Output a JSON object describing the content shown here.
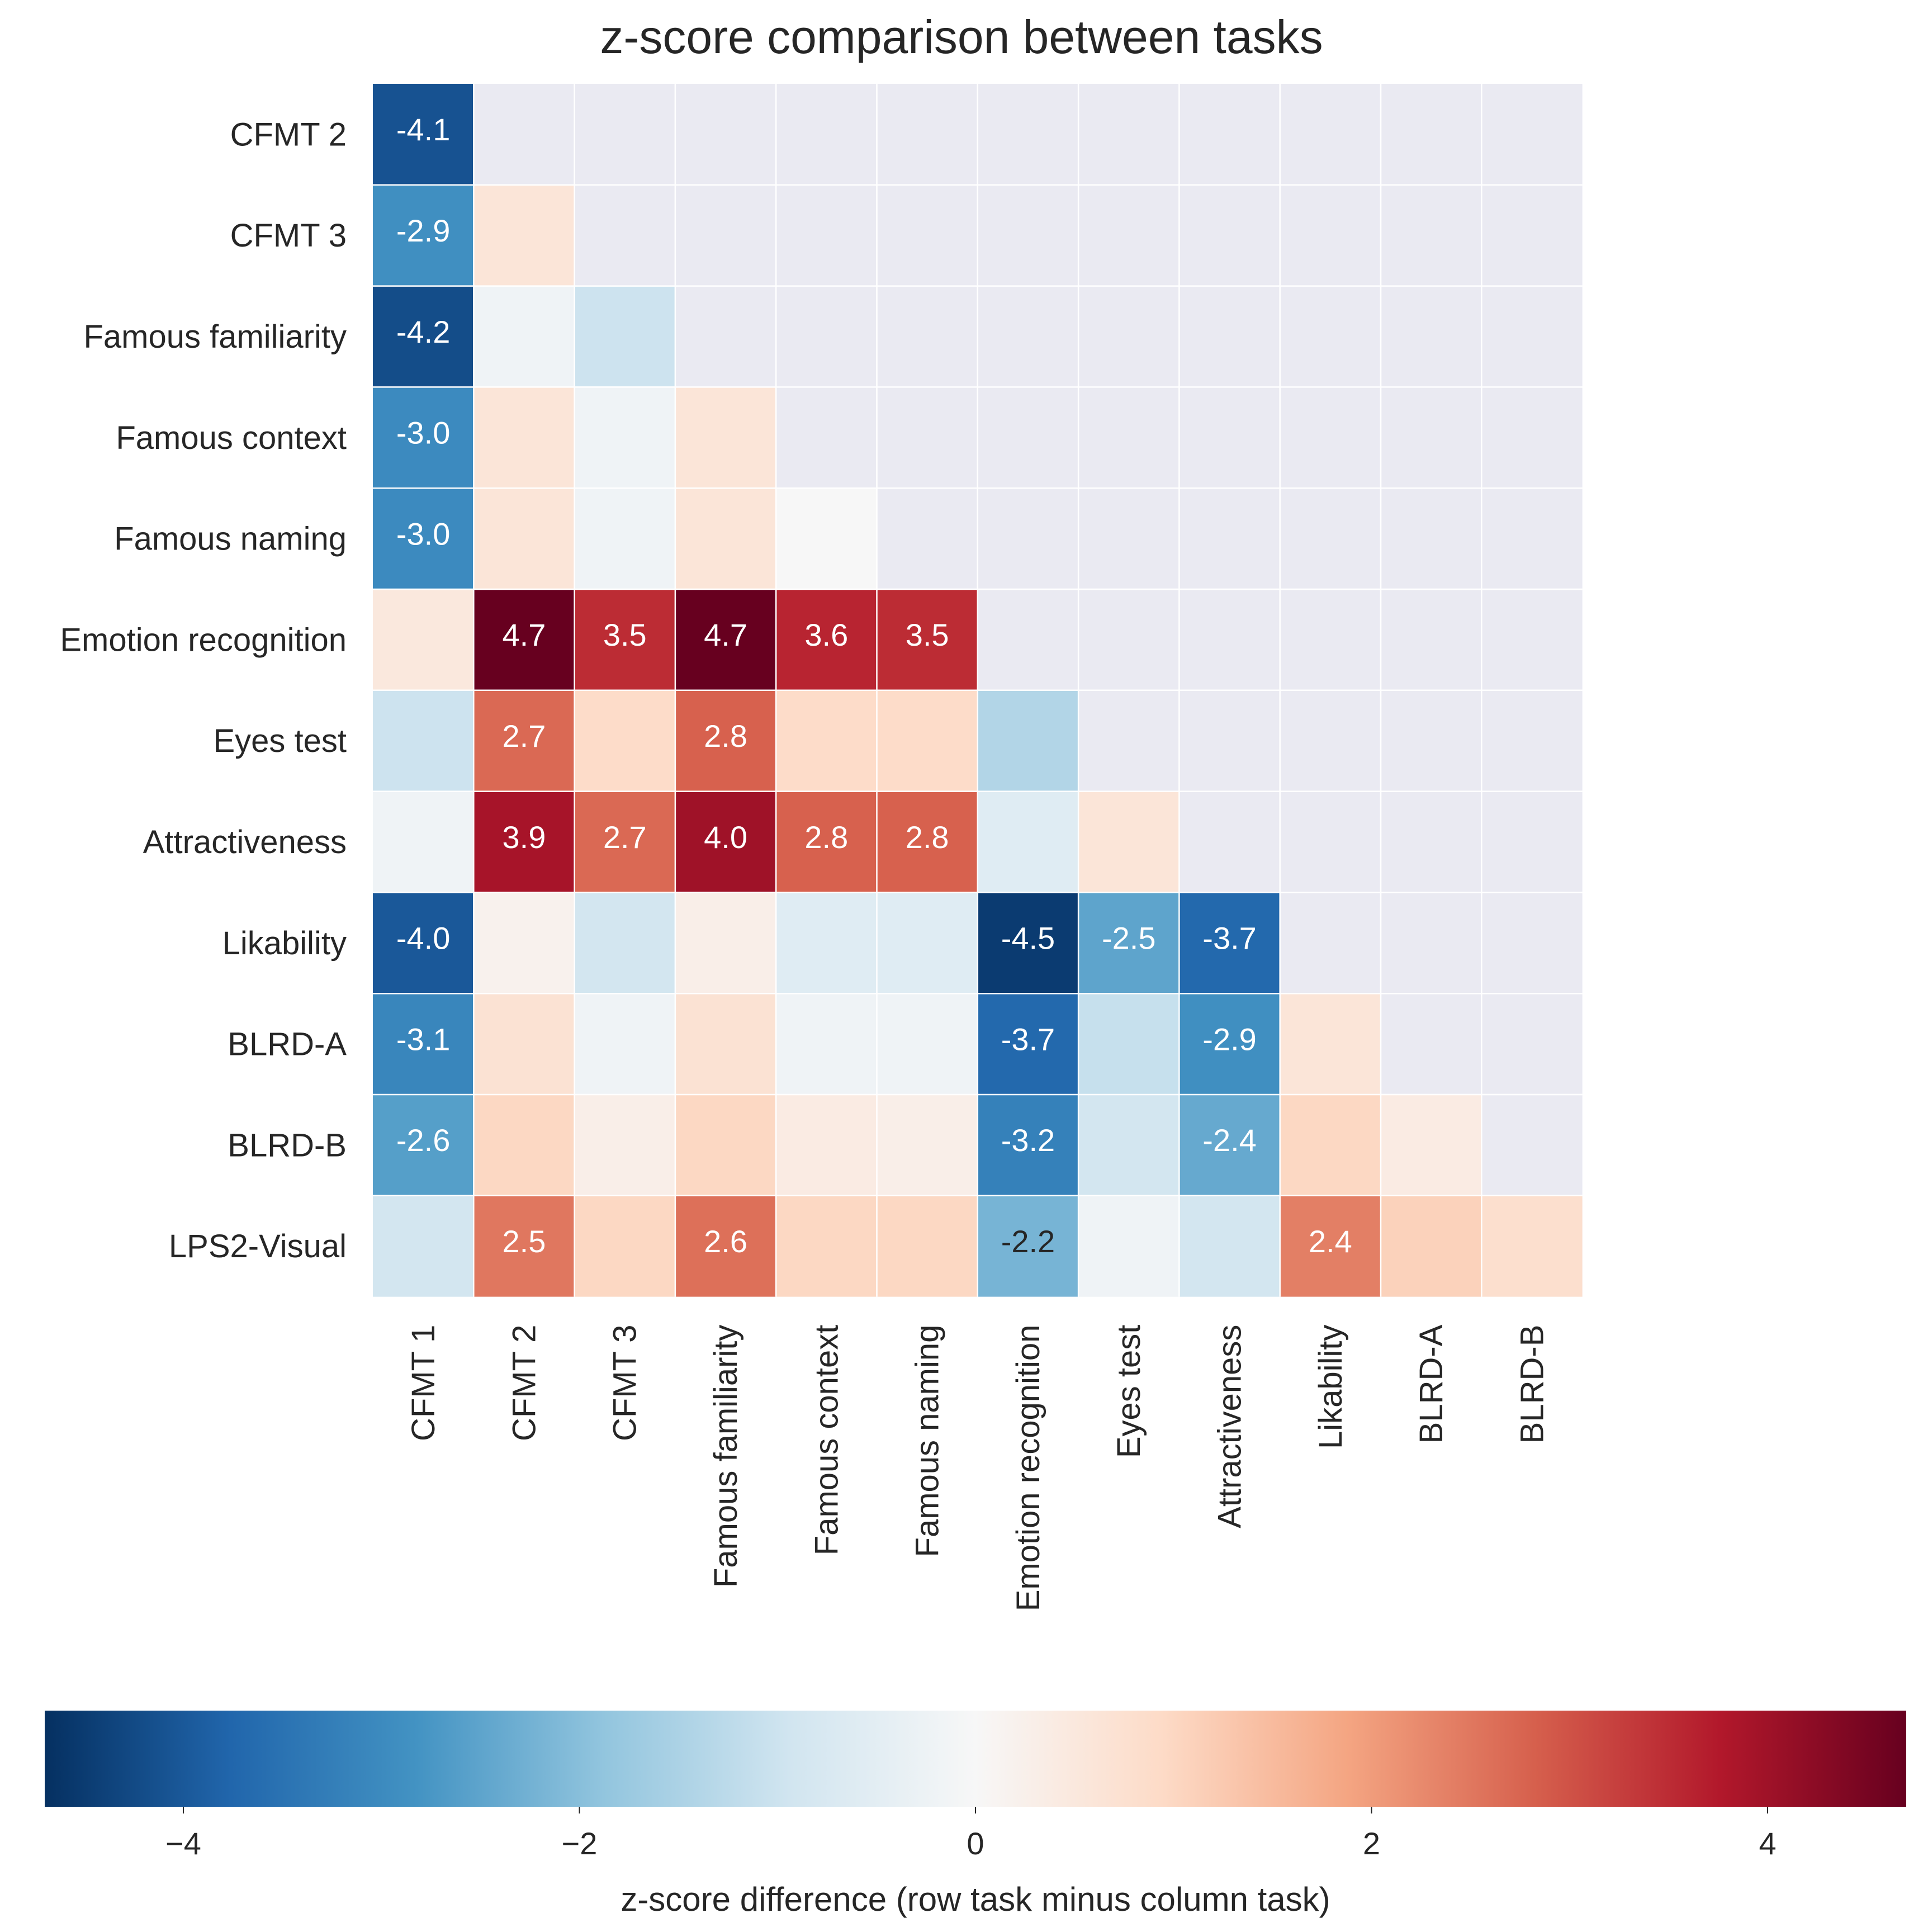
{
  "chart_data": {
    "type": "heatmap",
    "title": "z-score comparison between tasks",
    "rows": [
      "CFMT 2",
      "CFMT 3",
      "Famous familiarity",
      "Famous context",
      "Famous naming",
      "Emotion recognition",
      "Eyes test",
      "Attractiveness",
      "Likability",
      "BLRD-A",
      "BLRD-B",
      "LPS2-Visual"
    ],
    "columns": [
      "CFMT 1",
      "CFMT 2",
      "CFMT 3",
      "Famous familiarity",
      "Famous context",
      "Famous naming",
      "Emotion recognition",
      "Eyes test",
      "Attractiveness",
      "Likability",
      "BLRD-A",
      "BLRD-B"
    ],
    "values": [
      [
        -4.1,
        null,
        null,
        null,
        null,
        null,
        null,
        null,
        null,
        null,
        null,
        null
      ],
      [
        -2.9,
        0.6,
        null,
        null,
        null,
        null,
        null,
        null,
        null,
        null,
        null,
        null
      ],
      [
        -4.2,
        -0.2,
        -1.0,
        null,
        null,
        null,
        null,
        null,
        null,
        null,
        null,
        null
      ],
      [
        -3.0,
        0.6,
        -0.2,
        0.6,
        null,
        null,
        null,
        null,
        null,
        null,
        null,
        null
      ],
      [
        -3.0,
        0.6,
        -0.2,
        0.6,
        0.0,
        null,
        null,
        null,
        null,
        null,
        null,
        null
      ],
      [
        0.5,
        4.7,
        3.5,
        4.7,
        3.6,
        3.5,
        null,
        null,
        null,
        null,
        null,
        null
      ],
      [
        -1.0,
        2.7,
        0.9,
        2.8,
        0.9,
        0.9,
        -1.4,
        null,
        null,
        null,
        null,
        null
      ],
      [
        -0.2,
        3.9,
        2.7,
        4.0,
        2.8,
        2.8,
        -0.6,
        0.6,
        null,
        null,
        null,
        null
      ],
      [
        -4.0,
        0.2,
        -0.9,
        0.3,
        -0.6,
        -0.6,
        -4.5,
        -2.5,
        -3.7,
        null,
        null,
        null
      ],
      [
        -3.1,
        0.7,
        -0.2,
        0.7,
        -0.2,
        -0.2,
        -3.7,
        -1.1,
        -2.9,
        0.6,
        null,
        null
      ],
      [
        -2.6,
        1.0,
        0.3,
        1.0,
        0.4,
        0.3,
        -3.2,
        -0.9,
        -2.4,
        1.0,
        0.4,
        null
      ],
      [
        -0.9,
        2.5,
        1.0,
        2.6,
        1.0,
        1.0,
        -2.2,
        -0.2,
        -0.9,
        2.4,
        1.1,
        0.8
      ]
    ],
    "label_threshold": 2.15,
    "colormap": "RdBu_r",
    "vmin": -4.7,
    "vmax": 4.7,
    "colorbar": {
      "label": "z-score difference (row task minus column task)",
      "ticks": [
        -4,
        -2,
        0,
        2,
        4
      ],
      "tick_labels": [
        "−4",
        "−2",
        "0",
        "2",
        "4"
      ],
      "orientation": "horizontal",
      "placement": "bottom"
    },
    "mask_color": "#eaeaf2",
    "grid": true
  }
}
